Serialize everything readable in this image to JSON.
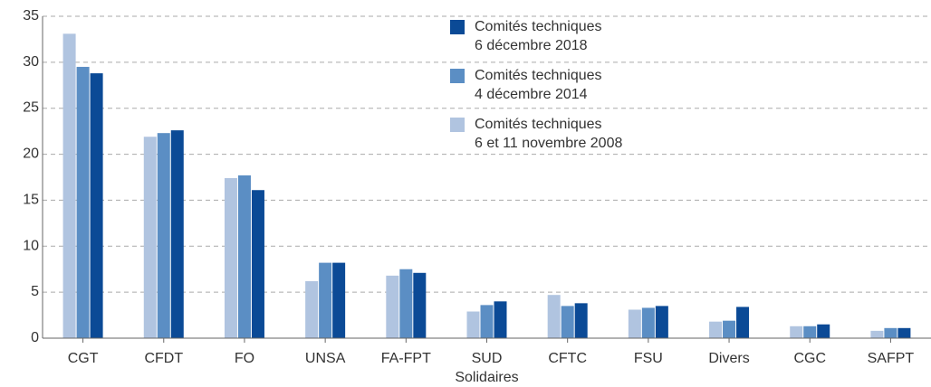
{
  "chart_data": {
    "type": "bar",
    "categories": [
      "CGT",
      "CFDT",
      "FO",
      "UNSA",
      "FA-FPT",
      "SUD\nSolidaires",
      "CFTC",
      "FSU",
      "Divers",
      "CGC",
      "SAFPT"
    ],
    "series": [
      {
        "name": "Comités techniques\n6 et 11 novembre 2008",
        "color": "#b0c4e0",
        "values": [
          33.1,
          21.9,
          17.4,
          6.2,
          6.8,
          2.9,
          4.7,
          3.1,
          1.8,
          1.3,
          0.8
        ]
      },
      {
        "name": "Comités techniques\n4 décembre 2014",
        "color": "#5b8ec4",
        "values": [
          29.5,
          22.3,
          17.7,
          8.2,
          7.5,
          3.6,
          3.5,
          3.3,
          1.9,
          1.3,
          1.1
        ]
      },
      {
        "name": "Comités techniques\n6 décembre 2018",
        "color": "#0b4a96",
        "values": [
          28.8,
          22.6,
          16.1,
          8.2,
          7.1,
          4.0,
          3.8,
          3.5,
          3.4,
          1.5,
          1.1
        ]
      }
    ],
    "ylim": [
      0,
      35
    ],
    "yticks": [
      0,
      5,
      10,
      15,
      20,
      25,
      30,
      35
    ],
    "grid": true
  }
}
